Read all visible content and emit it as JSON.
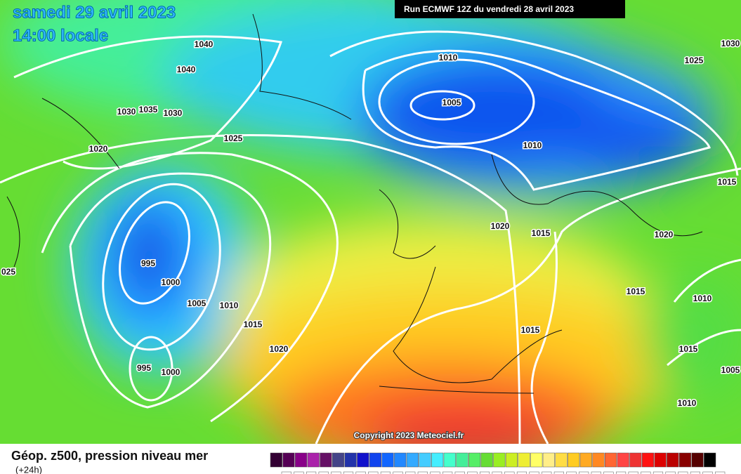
{
  "header": {
    "title": "samedi 29 avril 2023",
    "time": "14:00 locale",
    "run": "Run ECMWF 12Z du vendredi 28 avril 2023"
  },
  "isobar_labels": [
    "1040",
    "1040",
    "1030",
    "1035",
    "1030",
    "1020",
    "1025",
    "1010",
    "1005",
    "1010",
    "1025",
    "1030",
    "1015",
    "1020",
    "1015",
    "1020",
    "995",
    "1000",
    "1005",
    "1010",
    "1015",
    "1020",
    "1015",
    "1015",
    "1010",
    "1015",
    "1005",
    "1010",
    "995",
    "1000",
    "025"
  ],
  "copyright": "Copyright 2023 Meteociel.fr",
  "legend": {
    "title": "Géop. z500, pression niveau mer",
    "subtitle": "(+24h)"
  }
}
